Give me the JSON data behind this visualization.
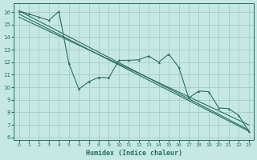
{
  "xlabel": "Humidex (Indice chaleur)",
  "bg_color": "#c5e8e3",
  "grid_color": "#a0c8c0",
  "line_color": "#2a7060",
  "xlim": [
    -0.5,
    23.5
  ],
  "ylim": [
    5.8,
    16.7
  ],
  "xticks": [
    0,
    1,
    2,
    3,
    4,
    5,
    6,
    7,
    8,
    9,
    10,
    11,
    12,
    13,
    14,
    15,
    16,
    17,
    18,
    19,
    20,
    21,
    22,
    23
  ],
  "yticks": [
    6,
    7,
    8,
    9,
    10,
    11,
    12,
    13,
    14,
    15,
    16
  ],
  "wavy_x": [
    0,
    1,
    2,
    3,
    4,
    5,
    6,
    7,
    8,
    9,
    10,
    11,
    12,
    13,
    14,
    15,
    16,
    17,
    18,
    19,
    20,
    21,
    22,
    23
  ],
  "wavy_y": [
    16.1,
    15.85,
    15.6,
    15.35,
    16.05,
    11.9,
    9.85,
    10.45,
    10.8,
    10.75,
    12.15,
    12.15,
    12.2,
    12.5,
    12.0,
    12.65,
    11.6,
    9.15,
    9.7,
    9.65,
    8.35,
    8.3,
    7.75,
    6.5
  ],
  "trend1_x": [
    0,
    23
  ],
  "trend1_y": [
    16.1,
    6.6
  ],
  "trend2_x": [
    0,
    23
  ],
  "trend2_y": [
    15.85,
    6.5
  ],
  "trend3_x": [
    0,
    23
  ],
  "trend3_y": [
    15.6,
    7.0
  ]
}
